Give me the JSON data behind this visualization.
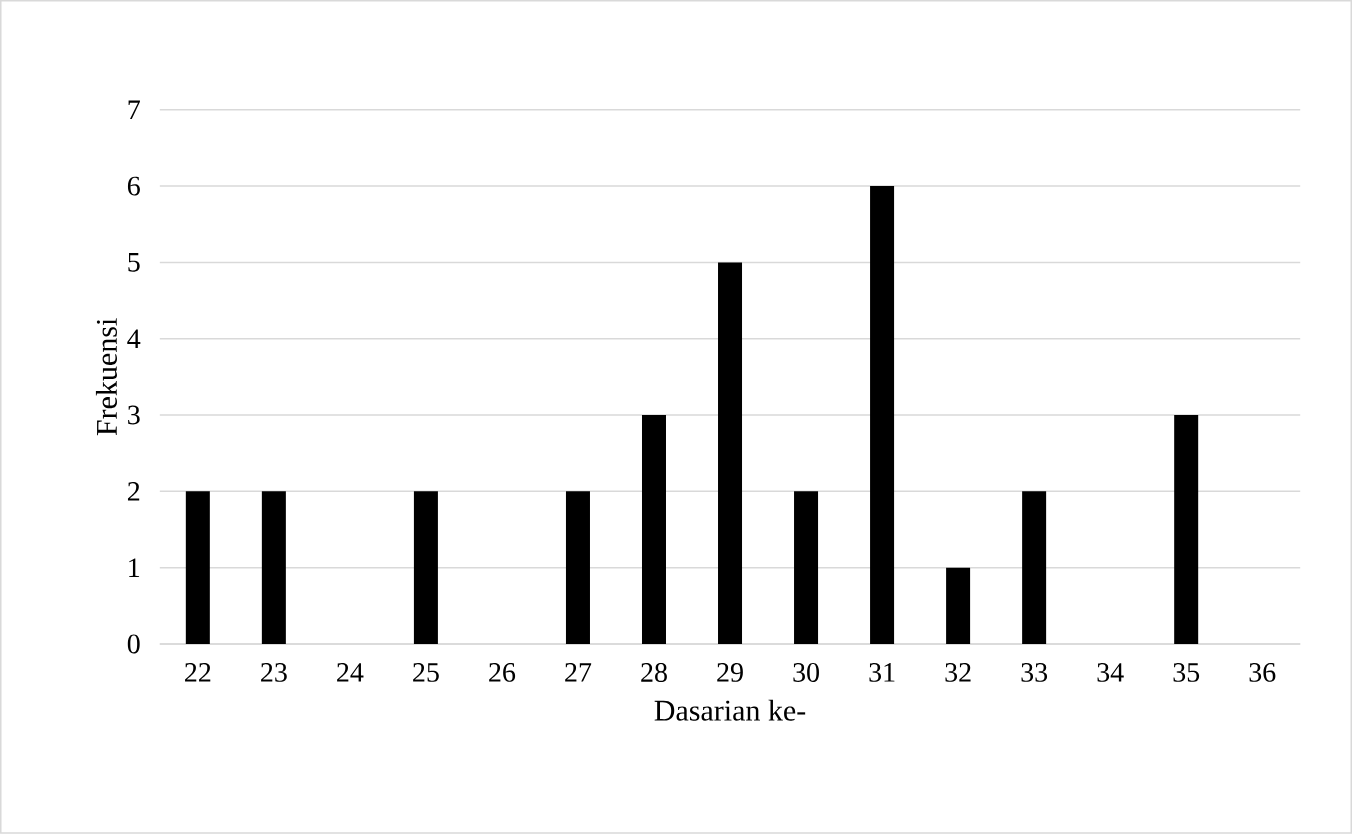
{
  "chart_data": {
    "type": "bar",
    "xlabel": "Dasarian ke-",
    "ylabel": "Frekuensi",
    "categories": [
      "22",
      "23",
      "24",
      "25",
      "26",
      "27",
      "28",
      "29",
      "30",
      "31",
      "32",
      "33",
      "34",
      "35",
      "36"
    ],
    "values": [
      2,
      2,
      0,
      2,
      0,
      2,
      3,
      5,
      2,
      6,
      1,
      2,
      0,
      3,
      0
    ],
    "color": "#000000",
    "ylim": [
      0,
      7
    ],
    "yticks": [
      0,
      1,
      2,
      3,
      4,
      5,
      6,
      7
    ],
    "grid": "y"
  }
}
